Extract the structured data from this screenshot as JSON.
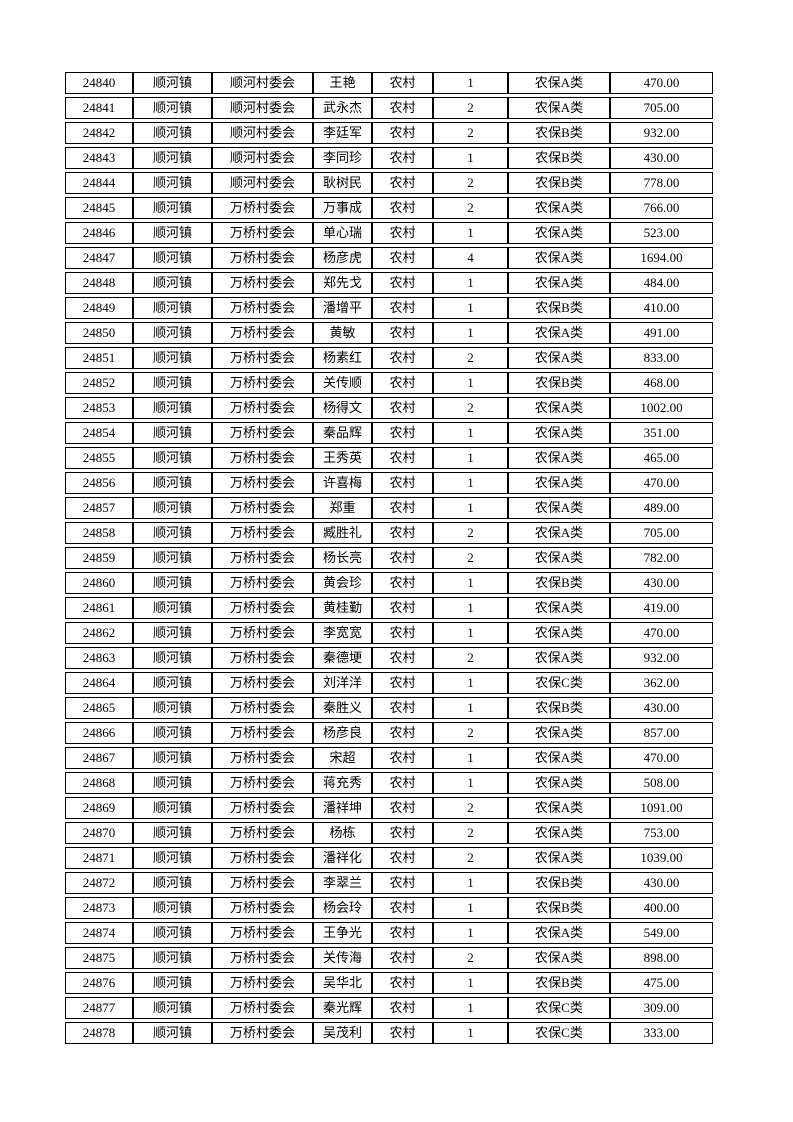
{
  "page": {
    "background_color": "#ffffff",
    "border_color": "#000000",
    "text_color": "#000000"
  },
  "table": {
    "rows": [
      [
        "24840",
        "顺河镇",
        "顺河村委会",
        "王艳",
        "农村",
        "1",
        "农保A类",
        "470.00"
      ],
      [
        "24841",
        "顺河镇",
        "顺河村委会",
        "武永杰",
        "农村",
        "2",
        "农保A类",
        "705.00"
      ],
      [
        "24842",
        "顺河镇",
        "顺河村委会",
        "李廷军",
        "农村",
        "2",
        "农保B类",
        "932.00"
      ],
      [
        "24843",
        "顺河镇",
        "顺河村委会",
        "李同珍",
        "农村",
        "1",
        "农保B类",
        "430.00"
      ],
      [
        "24844",
        "顺河镇",
        "顺河村委会",
        "耿树民",
        "农村",
        "2",
        "农保B类",
        "778.00"
      ],
      [
        "24845",
        "顺河镇",
        "万桥村委会",
        "万事成",
        "农村",
        "2",
        "农保A类",
        "766.00"
      ],
      [
        "24846",
        "顺河镇",
        "万桥村委会",
        "单心瑞",
        "农村",
        "1",
        "农保A类",
        "523.00"
      ],
      [
        "24847",
        "顺河镇",
        "万桥村委会",
        "杨彦虎",
        "农村",
        "4",
        "农保A类",
        "1694.00"
      ],
      [
        "24848",
        "顺河镇",
        "万桥村委会",
        "郑先戈",
        "农村",
        "1",
        "农保A类",
        "484.00"
      ],
      [
        "24849",
        "顺河镇",
        "万桥村委会",
        "潘增平",
        "农村",
        "1",
        "农保B类",
        "410.00"
      ],
      [
        "24850",
        "顺河镇",
        "万桥村委会",
        "黄敏",
        "农村",
        "1",
        "农保A类",
        "491.00"
      ],
      [
        "24851",
        "顺河镇",
        "万桥村委会",
        "杨素红",
        "农村",
        "2",
        "农保A类",
        "833.00"
      ],
      [
        "24852",
        "顺河镇",
        "万桥村委会",
        "关传顺",
        "农村",
        "1",
        "农保B类",
        "468.00"
      ],
      [
        "24853",
        "顺河镇",
        "万桥村委会",
        "杨得文",
        "农村",
        "2",
        "农保A类",
        "1002.00"
      ],
      [
        "24854",
        "顺河镇",
        "万桥村委会",
        "秦品辉",
        "农村",
        "1",
        "农保A类",
        "351.00"
      ],
      [
        "24855",
        "顺河镇",
        "万桥村委会",
        "王秀英",
        "农村",
        "1",
        "农保A类",
        "465.00"
      ],
      [
        "24856",
        "顺河镇",
        "万桥村委会",
        "许喜梅",
        "农村",
        "1",
        "农保A类",
        "470.00"
      ],
      [
        "24857",
        "顺河镇",
        "万桥村委会",
        "郑重",
        "农村",
        "1",
        "农保A类",
        "489.00"
      ],
      [
        "24858",
        "顺河镇",
        "万桥村委会",
        "臧胜礼",
        "农村",
        "2",
        "农保A类",
        "705.00"
      ],
      [
        "24859",
        "顺河镇",
        "万桥村委会",
        "杨长亮",
        "农村",
        "2",
        "农保A类",
        "782.00"
      ],
      [
        "24860",
        "顺河镇",
        "万桥村委会",
        "黄会珍",
        "农村",
        "1",
        "农保B类",
        "430.00"
      ],
      [
        "24861",
        "顺河镇",
        "万桥村委会",
        "黄桂勤",
        "农村",
        "1",
        "农保A类",
        "419.00"
      ],
      [
        "24862",
        "顺河镇",
        "万桥村委会",
        "李宽宽",
        "农村",
        "1",
        "农保A类",
        "470.00"
      ],
      [
        "24863",
        "顺河镇",
        "万桥村委会",
        "秦德埂",
        "农村",
        "2",
        "农保A类",
        "932.00"
      ],
      [
        "24864",
        "顺河镇",
        "万桥村委会",
        "刘洋洋",
        "农村",
        "1",
        "农保C类",
        "362.00"
      ],
      [
        "24865",
        "顺河镇",
        "万桥村委会",
        "秦胜义",
        "农村",
        "1",
        "农保B类",
        "430.00"
      ],
      [
        "24866",
        "顺河镇",
        "万桥村委会",
        "杨彦良",
        "农村",
        "2",
        "农保A类",
        "857.00"
      ],
      [
        "24867",
        "顺河镇",
        "万桥村委会",
        "宋超",
        "农村",
        "1",
        "农保A类",
        "470.00"
      ],
      [
        "24868",
        "顺河镇",
        "万桥村委会",
        "蒋充秀",
        "农村",
        "1",
        "农保A类",
        "508.00"
      ],
      [
        "24869",
        "顺河镇",
        "万桥村委会",
        "潘祥坤",
        "农村",
        "2",
        "农保A类",
        "1091.00"
      ],
      [
        "24870",
        "顺河镇",
        "万桥村委会",
        "杨栋",
        "农村",
        "2",
        "农保A类",
        "753.00"
      ],
      [
        "24871",
        "顺河镇",
        "万桥村委会",
        "潘祥化",
        "农村",
        "2",
        "农保A类",
        "1039.00"
      ],
      [
        "24872",
        "顺河镇",
        "万桥村委会",
        "李翠兰",
        "农村",
        "1",
        "农保B类",
        "430.00"
      ],
      [
        "24873",
        "顺河镇",
        "万桥村委会",
        "杨会玲",
        "农村",
        "1",
        "农保B类",
        "400.00"
      ],
      [
        "24874",
        "顺河镇",
        "万桥村委会",
        "王争光",
        "农村",
        "1",
        "农保A类",
        "549.00"
      ],
      [
        "24875",
        "顺河镇",
        "万桥村委会",
        "关传海",
        "农村",
        "2",
        "农保A类",
        "898.00"
      ],
      [
        "24876",
        "顺河镇",
        "万桥村委会",
        "吴华北",
        "农村",
        "1",
        "农保B类",
        "475.00"
      ],
      [
        "24877",
        "顺河镇",
        "万桥村委会",
        "秦光辉",
        "农村",
        "1",
        "农保C类",
        "309.00"
      ],
      [
        "24878",
        "顺河镇",
        "万桥村委会",
        "吴茂利",
        "农村",
        "1",
        "农保C类",
        "333.00"
      ]
    ]
  }
}
